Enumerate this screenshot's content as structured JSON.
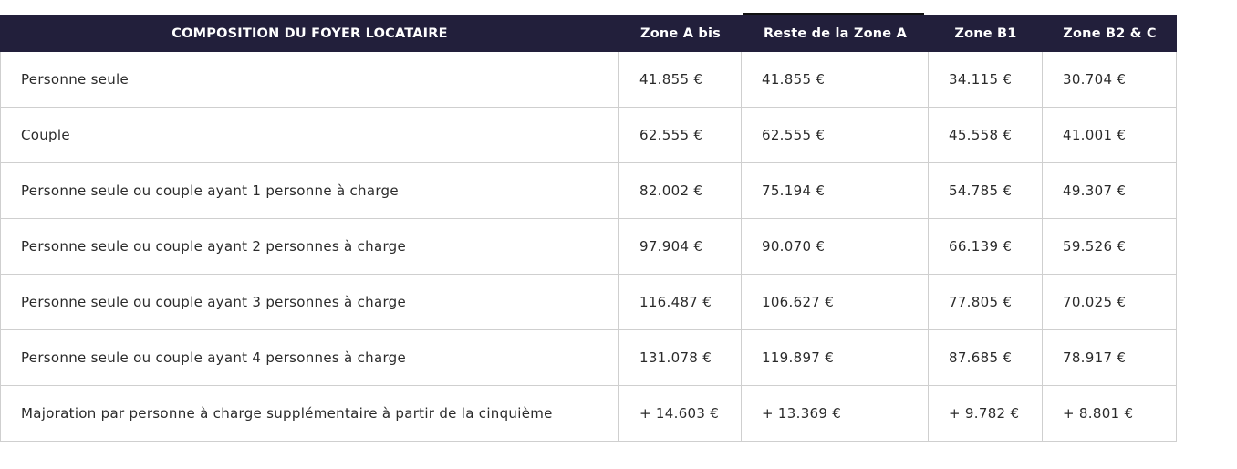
{
  "table": {
    "header": [
      "COMPOSITION DU FOYER LOCATAIRE",
      "Zone A bis",
      "Reste de la Zone A",
      "Zone B1",
      "Zone B2 & C"
    ],
    "rows": [
      [
        "Personne seule",
        "41.855 €",
        "41.855 €",
        "34.115 €",
        "30.704 €"
      ],
      [
        "Couple",
        "62.555 €",
        "62.555 €",
        "45.558 €",
        "41.001 €"
      ],
      [
        "Personne seule ou couple ayant 1 personne à charge",
        "82.002 €",
        "75.194 €",
        "54.785 €",
        "49.307 €"
      ],
      [
        "Personne seule ou couple ayant 2 personnes à charge",
        "97.904 €",
        "90.070 €",
        "66.139 €",
        "59.526 €"
      ],
      [
        "Personne seule ou couple ayant 3 personnes à charge",
        "116.487 €",
        "106.627 €",
        "77.805 €",
        "70.025 €"
      ],
      [
        "Personne seule ou couple ayant 4 personnes à charge",
        "131.078 €",
        "119.897 €",
        "87.685 €",
        "78.917 €"
      ],
      [
        "Majoration par personne à charge supplémentaire à partir de la cinquième",
        "+ 14.603 €",
        "+ 13.369 €",
        "+ 9.782 €",
        "+ 8.801 €"
      ]
    ]
  }
}
